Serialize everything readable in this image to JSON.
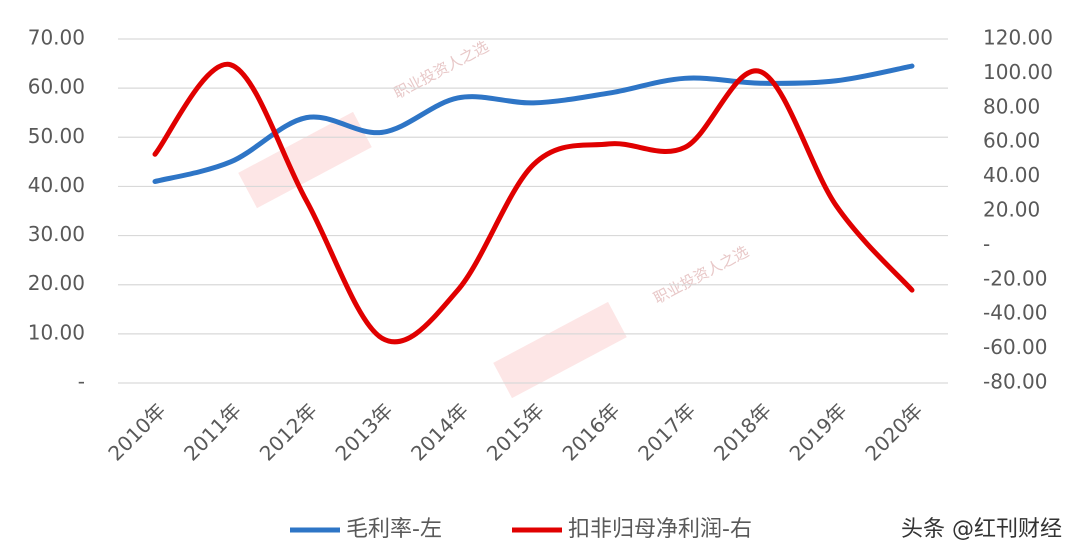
{
  "chart_data": {
    "type": "line",
    "categories": [
      "2010年",
      "2011年",
      "2012年",
      "2013年",
      "2014年",
      "2015年",
      "2016年",
      "2017年",
      "2018年",
      "2019年",
      "2020年"
    ],
    "series": [
      {
        "name": "毛利率-左",
        "color": "#2e75c6",
        "values": [
          41,
          45,
          54,
          51,
          58,
          57,
          59,
          62,
          61,
          61.5,
          64.5
        ]
      },
      {
        "name": "扣非归母净利润-右",
        "color": "#e00000",
        "axis": "y2",
        "values": [
          53,
          105,
          26,
          -54,
          -26,
          47,
          59,
          57,
          101,
          23,
          -26
        ]
      }
    ],
    "ylim": [
      0,
      70
    ],
    "yticks": [
      {
        "value": 0,
        "label": "-"
      },
      {
        "value": 10,
        "label": "10.00"
      },
      {
        "value": 20,
        "label": "20.00"
      },
      {
        "value": 30,
        "label": "30.00"
      },
      {
        "value": 40,
        "label": "40.00"
      },
      {
        "value": 50,
        "label": "50.00"
      },
      {
        "value": 60,
        "label": "60.00"
      },
      {
        "value": 70,
        "label": "70.00"
      }
    ],
    "y2lim": [
      -80,
      120
    ],
    "y2ticks": [
      {
        "value": -80,
        "label": "-80.00"
      },
      {
        "value": -60,
        "label": "-60.00"
      },
      {
        "value": -40,
        "label": "-40.00"
      },
      {
        "value": -20,
        "label": "-20.00"
      },
      {
        "value": 0,
        "label": "-"
      },
      {
        "value": 20,
        "label": "20.00"
      },
      {
        "value": 40,
        "label": "40.00"
      },
      {
        "value": 60,
        "label": "60.00"
      },
      {
        "value": 80,
        "label": "80.00"
      },
      {
        "value": 100,
        "label": "100.00"
      },
      {
        "value": 120,
        "label": "120.00"
      }
    ],
    "grid": true,
    "watermark": "职业投资人之选",
    "source": "头条 @红刊财经"
  }
}
